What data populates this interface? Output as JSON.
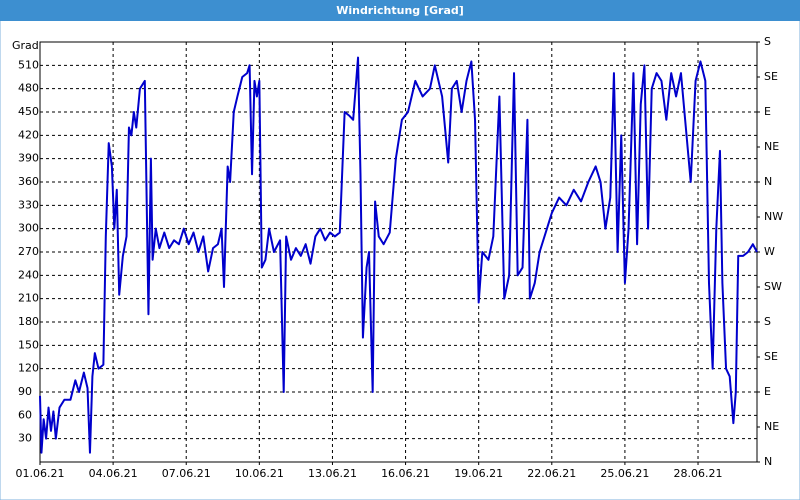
{
  "chart_data": {
    "type": "line",
    "title": "Windrichtung [Grad]",
    "y_label": "Grad",
    "x": [
      0,
      0.06,
      0.15,
      0.25,
      0.35,
      0.45,
      0.55,
      0.65,
      0.8,
      1,
      1.25,
      1.45,
      1.6,
      1.8,
      1.95,
      2.05,
      2.15,
      2.25,
      2.4,
      2.6,
      2.7,
      2.82,
      2.95,
      3.05,
      3.15,
      3.25,
      3.4,
      3.55,
      3.65,
      3.75,
      3.85,
      3.95,
      4.1,
      4.3,
      4.45,
      4.55,
      4.62,
      4.75,
      4.9,
      5.1,
      5.3,
      5.5,
      5.7,
      5.9,
      6.1,
      6.3,
      6.5,
      6.7,
      6.9,
      7.1,
      7.3,
      7.45,
      7.55,
      7.7,
      7.8,
      7.95,
      8.1,
      8.3,
      8.5,
      8.6,
      8.7,
      8.8,
      8.9,
      9,
      9.1,
      9.25,
      9.4,
      9.6,
      9.85,
      10,
      10.1,
      10.3,
      10.5,
      10.7,
      10.9,
      11.1,
      11.3,
      11.5,
      11.7,
      11.9,
      12.1,
      12.3,
      12.5,
      12.7,
      12.85,
      13.05,
      13.15,
      13.25,
      13.4,
      13.5,
      13.65,
      13.75,
      13.9,
      14.1,
      14.35,
      14.6,
      14.85,
      15.1,
      15.4,
      15.7,
      16,
      16.2,
      16.5,
      16.75,
      16.9,
      17.1,
      17.3,
      17.5,
      17.7,
      17.85,
      18,
      18.15,
      18.4,
      18.6,
      18.85,
      19.05,
      19.25,
      19.45,
      19.6,
      19.8,
      20,
      20.1,
      20.3,
      20.5,
      20.8,
      21,
      21.3,
      21.6,
      21.9,
      22.2,
      22.5,
      22.8,
      23,
      23.2,
      23.4,
      23.55,
      23.7,
      23.85,
      24,
      24.15,
      24.35,
      24.5,
      24.65,
      24.8,
      24.95,
      25.1,
      25.3,
      25.5,
      25.7,
      25.9,
      26.1,
      26.3,
      26.5,
      26.7,
      26.9,
      27.1,
      27.3,
      27.45,
      27.6,
      27.75,
      27.9,
      28,
      28.15,
      28.3,
      28.45,
      28.55,
      28.65,
      28.85,
      29.05,
      29.25,
      29.42
    ],
    "series": [
      {
        "name": "Windrichtung",
        "color": "#0000cc",
        "values": [
          85,
          12,
          55,
          30,
          70,
          40,
          65,
          30,
          70,
          80,
          80,
          105,
          90,
          115,
          95,
          12,
          110,
          140,
          120,
          125,
          290,
          410,
          380,
          300,
          350,
          215,
          265,
          290,
          430,
          420,
          450,
          430,
          480,
          490,
          190,
          390,
          260,
          300,
          275,
          295,
          275,
          285,
          280,
          300,
          280,
          295,
          270,
          290,
          245,
          275,
          280,
          300,
          225,
          380,
          360,
          450,
          470,
          495,
          500,
          510,
          370,
          490,
          470,
          490,
          250,
          260,
          300,
          270,
          285,
          90,
          290,
          260,
          275,
          265,
          280,
          255,
          290,
          300,
          285,
          295,
          290,
          295,
          450,
          445,
          440,
          520,
          370,
          160,
          250,
          270,
          90,
          335,
          290,
          280,
          295,
          390,
          440,
          450,
          490,
          470,
          480,
          510,
          470,
          385,
          480,
          490,
          450,
          490,
          515,
          440,
          205,
          270,
          260,
          290,
          470,
          210,
          240,
          500,
          240,
          250,
          440,
          210,
          230,
          270,
          300,
          320,
          340,
          330,
          350,
          335,
          360,
          380,
          360,
          300,
          340,
          500,
          270,
          420,
          230,
          300,
          500,
          280,
          460,
          510,
          300,
          480,
          500,
          490,
          440,
          500,
          470,
          500,
          430,
          360,
          490,
          515,
          490,
          230,
          120,
          300,
          400,
          230,
          120,
          110,
          50,
          90,
          265,
          265,
          270,
          280,
          270
        ]
      }
    ],
    "xlim": [
      0,
      29.42
    ],
    "xticks": [
      {
        "value": 0,
        "label": "01.06.21"
      },
      {
        "value": 3,
        "label": "04.06.21"
      },
      {
        "value": 6,
        "label": "07.06.21"
      },
      {
        "value": 9,
        "label": "10.06.21"
      },
      {
        "value": 12,
        "label": "13.06.21"
      },
      {
        "value": 15,
        "label": "16.06.21"
      },
      {
        "value": 18,
        "label": "19.06.21"
      },
      {
        "value": 21,
        "label": "22.06.21"
      },
      {
        "value": 24,
        "label": "25.06.21"
      },
      {
        "value": 27,
        "label": "28.06.21"
      }
    ],
    "ylim": [
      0,
      540
    ],
    "yticks": [
      30,
      60,
      90,
      120,
      150,
      180,
      210,
      240,
      270,
      300,
      330,
      360,
      390,
      420,
      450,
      480,
      510
    ],
    "y2lim": [
      0,
      540
    ],
    "y2ticks": [
      {
        "value": 0,
        "label": "N"
      },
      {
        "value": 45,
        "label": "NE"
      },
      {
        "value": 90,
        "label": "E"
      },
      {
        "value": 135,
        "label": "SE"
      },
      {
        "value": 180,
        "label": "S"
      },
      {
        "value": 225,
        "label": "SW"
      },
      {
        "value": 270,
        "label": "W"
      },
      {
        "value": 315,
        "label": "NW"
      },
      {
        "value": 360,
        "label": "N"
      },
      {
        "value": 405,
        "label": "NE"
      },
      {
        "value": 450,
        "label": "E"
      },
      {
        "value": 495,
        "label": "SE"
      },
      {
        "value": 540,
        "label": "S"
      }
    ],
    "grid": true
  }
}
